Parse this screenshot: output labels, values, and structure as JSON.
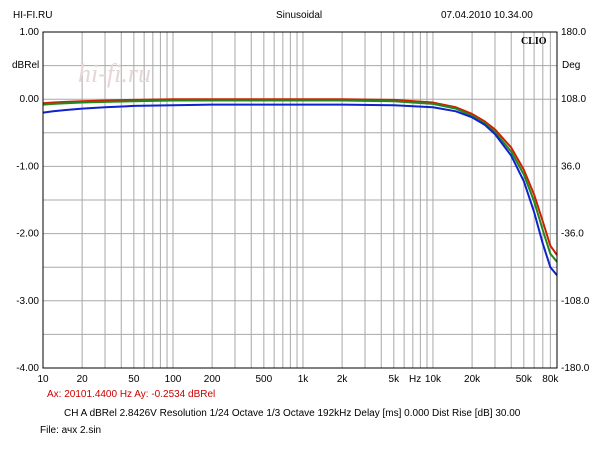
{
  "header": {
    "left": "HI-FI.RU",
    "center": "Sinusoidal",
    "right": "07.04.2010 10.34.00"
  },
  "watermark": "hi-fi.ru",
  "brand": "CLIO",
  "cursor_readout": "Ax: 20101.4400 Hz   Ay: -0.2534 dBRel",
  "params_line": "CH A   dBRel 2.8426V   Resolution 1/24 Octave    1/3 Octave    192kHz    Delay [ms] 0.000    Dist Rise [dB] 30.00",
  "file_line": "File: ачх 2.sin",
  "chart_data": {
    "type": "line",
    "xscale": "log",
    "xlim": [
      10,
      90000
    ],
    "ylim": [
      -4.0,
      1.0
    ],
    "y2lim": [
      -180.0,
      180.0
    ],
    "grid": true,
    "ylabel": "dBRel",
    "y2label": "Deg",
    "xlabel": "Hz",
    "x_ticks": [
      {
        "v": 10,
        "label": "10"
      },
      {
        "v": 20,
        "label": "20"
      },
      {
        "v": 50,
        "label": "50"
      },
      {
        "v": 100,
        "label": "100"
      },
      {
        "v": 200,
        "label": "200"
      },
      {
        "v": 500,
        "label": "500"
      },
      {
        "v": 1000,
        "label": "1k"
      },
      {
        "v": 2000,
        "label": "2k"
      },
      {
        "v": 5000,
        "label": "5k"
      },
      {
        "v": 10000,
        "label": "10k"
      },
      {
        "v": 20000,
        "label": "20k"
      },
      {
        "v": 50000,
        "label": "50k"
      },
      {
        "v": 80000,
        "label": "80k"
      }
    ],
    "y_ticks": [
      {
        "v": 1.0,
        "label": "1.00"
      },
      {
        "v": 0.0,
        "label": "0.00"
      },
      {
        "v": -1.0,
        "label": "-1.00"
      },
      {
        "v": -2.0,
        "label": "-2.00"
      },
      {
        "v": -3.0,
        "label": "-3.00"
      },
      {
        "v": -4.0,
        "label": "-4.00"
      }
    ],
    "y2_ticks": [
      {
        "v": 180.0,
        "label": "180.0"
      },
      {
        "v": 108.0,
        "label": "108.0"
      },
      {
        "v": 36.0,
        "label": "36.0"
      },
      {
        "v": -36.0,
        "label": "-36.0"
      },
      {
        "v": -108.0,
        "label": "-108.0"
      },
      {
        "v": -180.0,
        "label": "-180.0"
      }
    ],
    "series": [
      {
        "color": "#cc2200",
        "x": [
          10,
          12,
          15,
          20,
          30,
          50,
          100,
          200,
          500,
          1000,
          2000,
          5000,
          10000,
          15000,
          20000,
          25000,
          30000,
          40000,
          50000,
          60000,
          70000,
          80000,
          90000
        ],
        "y": [
          -0.06,
          -0.05,
          -0.04,
          -0.03,
          -0.02,
          -0.01,
          0.0,
          0.0,
          0.0,
          0.0,
          0.0,
          -0.01,
          -0.05,
          -0.12,
          -0.22,
          -0.33,
          -0.45,
          -0.72,
          -1.05,
          -1.42,
          -1.82,
          -2.18,
          -2.32
        ]
      },
      {
        "color": "#228822",
        "x": [
          10,
          12,
          15,
          20,
          30,
          50,
          100,
          200,
          500,
          1000,
          2000,
          5000,
          10000,
          15000,
          20000,
          25000,
          30000,
          40000,
          50000,
          60000,
          70000,
          80000,
          90000
        ],
        "y": [
          -0.08,
          -0.07,
          -0.06,
          -0.05,
          -0.04,
          -0.03,
          -0.02,
          -0.02,
          -0.02,
          -0.02,
          -0.02,
          -0.03,
          -0.07,
          -0.14,
          -0.25,
          -0.36,
          -0.49,
          -0.78,
          -1.12,
          -1.52,
          -1.95,
          -2.3,
          -2.42
        ]
      },
      {
        "color": "#1122cc",
        "x": [
          10,
          12,
          15,
          20,
          30,
          50,
          100,
          200,
          500,
          1000,
          2000,
          5000,
          10000,
          15000,
          20000,
          25000,
          30000,
          40000,
          50000,
          60000,
          70000,
          80000,
          90000
        ],
        "y": [
          -0.2,
          -0.18,
          -0.16,
          -0.14,
          -0.12,
          -0.1,
          -0.09,
          -0.08,
          -0.08,
          -0.08,
          -0.08,
          -0.09,
          -0.12,
          -0.18,
          -0.27,
          -0.38,
          -0.52,
          -0.84,
          -1.22,
          -1.68,
          -2.15,
          -2.5,
          -2.62
        ]
      }
    ]
  }
}
